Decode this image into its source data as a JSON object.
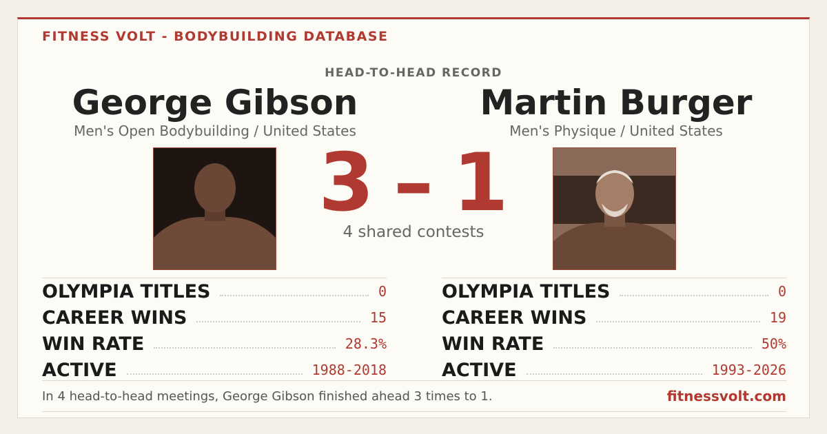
{
  "header": {
    "brand": "FITNESS VOLT - BODYBUILDING DATABASE",
    "kicker": "HEAD-TO-HEAD RECORD"
  },
  "left": {
    "name": "George Gibson",
    "division": "Men's Open Bodybuilding / United States",
    "stats": [
      {
        "label": "OLYMPIA TITLES",
        "value": "0"
      },
      {
        "label": "CAREER WINS",
        "value": "15"
      },
      {
        "label": "WIN RATE",
        "value": "28.3%"
      },
      {
        "label": "ACTIVE",
        "value": "1988-2018"
      }
    ]
  },
  "right": {
    "name": "Martin Burger",
    "division": "Men's Physique / United States",
    "stats": [
      {
        "label": "OLYMPIA TITLES",
        "value": "0"
      },
      {
        "label": "CAREER WINS",
        "value": "19"
      },
      {
        "label": "WIN RATE",
        "value": "50%"
      },
      {
        "label": "ACTIVE",
        "value": "1993-2026"
      }
    ]
  },
  "score": {
    "left": "3",
    "separator": "–",
    "right": "1",
    "caption": "4 shared contests"
  },
  "footer": {
    "summary": "In 4 head-to-head meetings, George Gibson finished ahead 3 times to 1.",
    "site": "fitnessvolt.com"
  }
}
